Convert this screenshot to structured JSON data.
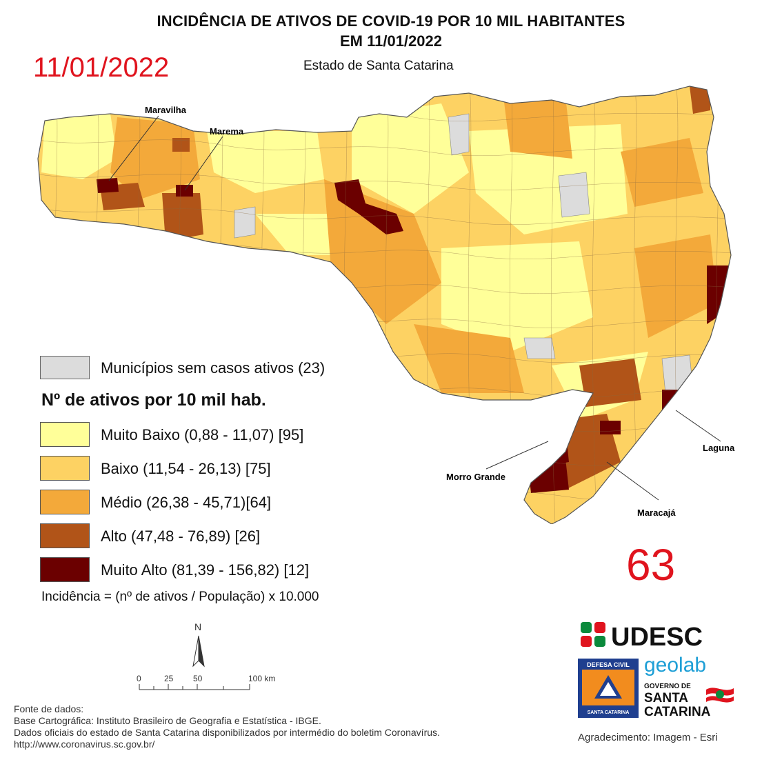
{
  "title_line1": "INCIDÊNCIA DE ATIVOS DE COVID-19 POR 10 MIL HABITANTES",
  "title_line2": "EM 11/01/2022",
  "date_stamp": "11/01/2022",
  "subtitle": "Estado de Santa Catarina",
  "place_labels": {
    "maravilha": "Maravilha",
    "marema": "Marema",
    "laguna": "Laguna",
    "morro_grande": "Morro Grande",
    "maracaja": "Maracajá"
  },
  "legend": {
    "no_cases": {
      "label": "Municípios sem casos ativos (23)",
      "color": "#dcdcdc"
    },
    "heading": "Nº de ativos por 10 mil hab.",
    "classes": [
      {
        "label": "Muito Baixo (0,88 - 11,07) [95]",
        "color": "#ffff99"
      },
      {
        "label": "Baixo (11,54 - 26,13) [75]",
        "color": "#fdd263"
      },
      {
        "label": "Médio (26,38 - 45,71)[64]",
        "color": "#f3a93a"
      },
      {
        "label": "Alto (47,48 - 76,89) [26]",
        "color": "#b15418"
      },
      {
        "label": "Muito Alto (81,39 - 156,82) [12]",
        "color": "#6b0000"
      }
    ]
  },
  "formula": "Incidência = (nº de ativos / População) x 10.000",
  "big_number": "63",
  "north_label": "N",
  "scale_bar": {
    "ticks": [
      "0",
      "25",
      "50",
      "100 km"
    ]
  },
  "sources": [
    "Fonte de dados:",
    "Base Cartográfica: Instituto Brasileiro de Geografia e Estatística - IBGE.",
    "Dados oficiais do estado de Santa Catarina disponibilizados por intermédio do boletim Coronavírus.",
    "http://www.coronavirus.sc.gov.br/"
  ],
  "acknowledgment": "Agradecimento: Imagem - Esri",
  "logos": {
    "udesc": "UDESC",
    "geolab": "geolab",
    "defesa_top": "DEFESA CIVIL",
    "defesa_bottom": "SANTA CATARINA",
    "gov_line1": "GOVERNO DE",
    "gov_line2": "SANTA",
    "gov_line3": "CATARINA"
  }
}
